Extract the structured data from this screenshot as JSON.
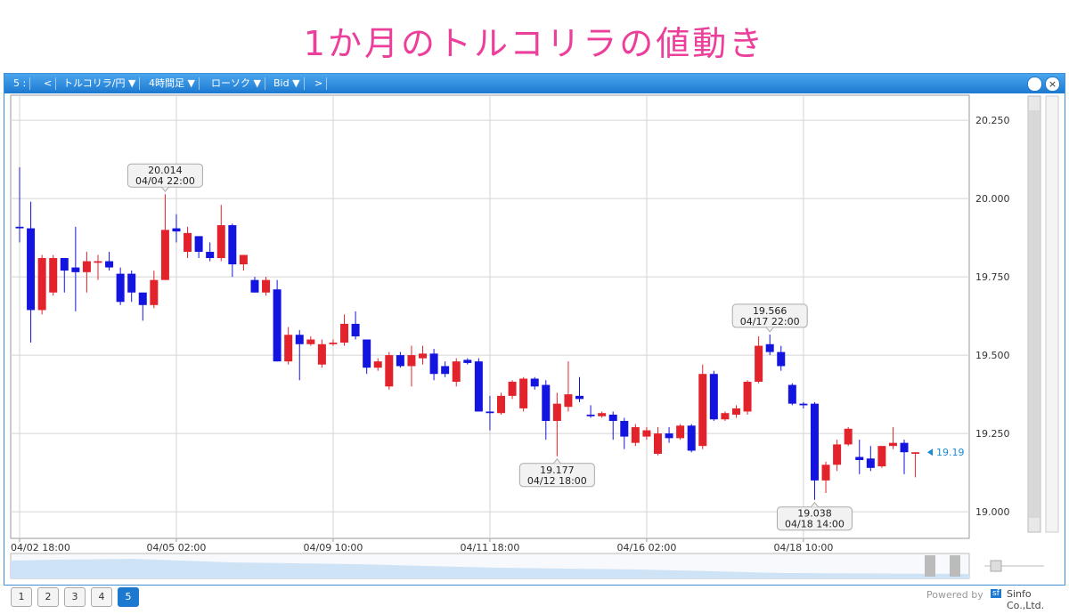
{
  "header": {
    "title": "1か月のトルコリラの値動き"
  },
  "toolbar": {
    "items": [
      "5 :",
      "<",
      "トルコリラ/円 ▼",
      "4時間足 ▼",
      "ローソク ▼",
      "Bid ▼",
      ">"
    ]
  },
  "chart_data": {
    "type": "candlestick",
    "categories": [
      "04/02 18:00",
      null,
      null,
      null,
      null,
      null,
      null,
      null,
      null,
      null,
      null,
      null,
      null,
      null,
      "04/05 02:00",
      null,
      null,
      null,
      null,
      null,
      null,
      null,
      null,
      null,
      null,
      null,
      null,
      null,
      "04/09 10:00",
      null,
      null,
      null,
      null,
      null,
      null,
      null,
      null,
      null,
      null,
      null,
      null,
      null,
      "04/11 18:00",
      null,
      null,
      null,
      null,
      null,
      null,
      null,
      null,
      null,
      null,
      null,
      null,
      null,
      "04/16 02:00",
      null,
      null,
      null,
      null,
      null,
      null,
      null,
      null,
      null,
      null,
      null,
      null,
      null,
      "04/18 10:00",
      null,
      null,
      null,
      null,
      null,
      null,
      null,
      null,
      null,
      null
    ],
    "open": [
      19.91,
      19.905,
      19.644,
      19.7,
      19.81,
      19.78,
      19.765,
      19.795,
      19.8,
      19.76,
      19.76,
      19.7,
      19.66,
      19.74,
      19.905,
      19.83,
      19.88,
      19.83,
      19.81,
      19.915,
      19.79,
      19.74,
      19.7,
      19.71,
      19.48,
      19.565,
      19.535,
      19.47,
      19.535,
      19.54,
      19.6,
      19.55,
      19.46,
      19.4,
      19.5,
      19.465,
      19.49,
      19.505,
      19.465,
      19.415,
      19.485,
      19.48,
      19.32,
      19.315,
      19.37,
      19.33,
      19.425,
      19.405,
      19.29,
      19.335,
      19.37,
      19.31,
      19.305,
      19.31,
      19.29,
      19.22,
      19.24,
      19.185,
      19.25,
      19.235,
      19.275,
      19.21,
      19.44,
      19.295,
      19.31,
      19.32,
      19.415,
      19.535,
      19.51,
      19.405,
      19.345,
      19.345,
      19.1,
      19.15,
      19.215,
      19.175,
      19.17,
      19.145,
      19.21,
      19.22,
      19.185
    ],
    "high": [
      20.1,
      19.99,
      19.82,
      19.82,
      19.81,
      19.91,
      19.83,
      19.82,
      19.83,
      19.78,
      19.77,
      19.7,
      19.77,
      20.014,
      19.95,
      19.91,
      19.88,
      19.86,
      19.98,
      19.92,
      19.82,
      19.75,
      19.75,
      19.74,
      19.59,
      19.58,
      19.56,
      19.55,
      19.55,
      19.63,
      19.64,
      19.55,
      19.49,
      19.51,
      19.51,
      19.53,
      19.53,
      19.52,
      19.48,
      19.49,
      19.49,
      19.49,
      19.37,
      19.38,
      19.42,
      19.43,
      19.43,
      19.42,
      19.38,
      19.48,
      19.43,
      19.34,
      19.32,
      19.32,
      19.3,
      19.28,
      19.27,
      19.27,
      19.27,
      19.28,
      19.28,
      19.47,
      19.45,
      19.32,
      19.34,
      19.42,
      19.56,
      19.566,
      19.53,
      19.41,
      19.35,
      19.35,
      19.16,
      19.23,
      19.27,
      19.23,
      19.21,
      19.21,
      19.27,
      19.23,
      19.19
    ],
    "low": [
      19.86,
      19.54,
      19.63,
      19.69,
      19.7,
      19.64,
      19.7,
      19.74,
      19.77,
      19.66,
      19.67,
      19.61,
      19.65,
      19.74,
      19.86,
      19.81,
      19.81,
      19.8,
      19.8,
      19.75,
      19.77,
      19.7,
      19.69,
      19.48,
      19.47,
      19.42,
      19.53,
      19.46,
      19.53,
      19.53,
      19.55,
      19.44,
      19.45,
      19.39,
      19.46,
      19.4,
      19.47,
      19.42,
      19.43,
      19.4,
      19.47,
      19.32,
      19.26,
      19.31,
      19.36,
      19.32,
      19.39,
      19.23,
      19.177,
      19.32,
      19.35,
      19.3,
      19.3,
      19.23,
      19.2,
      19.21,
      19.23,
      19.18,
      19.22,
      19.23,
      19.19,
      19.2,
      19.29,
      19.29,
      19.3,
      19.31,
      19.41,
      19.5,
      19.45,
      19.34,
      19.33,
      19.038,
      19.06,
      19.13,
      19.21,
      19.12,
      19.13,
      19.14,
      19.2,
      19.12,
      19.11
    ],
    "close": [
      19.905,
      19.644,
      19.81,
      19.81,
      19.77,
      19.765,
      19.8,
      19.8,
      19.78,
      19.67,
      19.7,
      19.66,
      19.74,
      19.9,
      19.895,
      19.89,
      19.83,
      19.81,
      19.915,
      19.79,
      19.82,
      19.7,
      19.74,
      19.48,
      19.565,
      19.535,
      19.55,
      19.535,
      19.54,
      19.6,
      19.56,
      19.46,
      19.48,
      19.5,
      19.465,
      19.5,
      19.505,
      19.44,
      19.44,
      19.48,
      19.475,
      19.32,
      19.315,
      19.37,
      19.415,
      19.425,
      19.4,
      19.29,
      19.345,
      19.375,
      19.36,
      19.305,
      19.315,
      19.29,
      19.24,
      19.27,
      19.26,
      19.25,
      19.235,
      19.275,
      19.195,
      19.44,
      19.295,
      19.315,
      19.33,
      19.415,
      19.53,
      19.51,
      19.465,
      19.345,
      19.34,
      19.1,
      19.15,
      19.215,
      19.265,
      19.165,
      19.14,
      19.21,
      19.22,
      19.19,
      19.19
    ],
    "up_color": "#e3232b",
    "down_color": "#1414e0",
    "ylim": [
      18.915,
      20.33
    ],
    "yticks": [
      {
        "value": 19,
        "label": "19.000"
      },
      {
        "value": 19.25,
        "label": "19.250"
      },
      {
        "value": 19.5,
        "label": "19.500"
      },
      {
        "value": 19.75,
        "label": "19.750"
      },
      {
        "value": 20,
        "label": "20.000"
      },
      {
        "value": 20.25,
        "label": "20.250"
      }
    ],
    "grid": true,
    "annotations": [
      {
        "price": 20.014,
        "time": "04/04 22:00"
      },
      {
        "price": 19.177,
        "time": "04/12 18:00"
      },
      {
        "price": 19.566,
        "time": "04/17 22:00"
      },
      {
        "price": 19.038,
        "time": "04/18 14:00"
      }
    ],
    "last_price": 19.19
  },
  "footer": {
    "tabs": [
      "1",
      "2",
      "3",
      "4",
      "5"
    ],
    "powered": "Powered by",
    "logo": "sf",
    "company": "Sinfo Co.,Ltd."
  }
}
